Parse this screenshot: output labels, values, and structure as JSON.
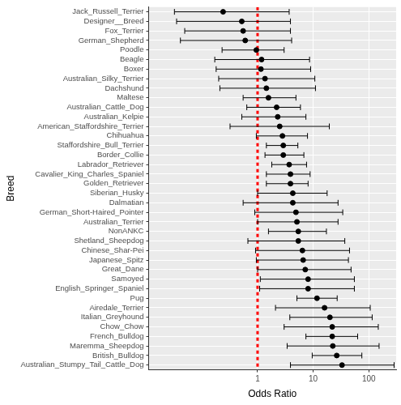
{
  "chart_data": {
    "type": "scatter",
    "x_label": "Odds Ratio",
    "y_label": "Breed",
    "categories": [
      "Jack_Russell_Terrier",
      "Designer__Breed",
      "Fox_Terrier",
      "German_Shepherd",
      "Poodle",
      "Beagle",
      "Boxer",
      "Australian_Silky_Terrier",
      "Dachshund",
      "Maltese",
      "Australian_Cattle_Dog",
      "Australian_Kelpie",
      "American_Staffordshire_Terrier",
      "Chihuahua",
      "Staffordshire_Bull_Terrier",
      "Border_Collie",
      "Labrador_Retriever",
      "Cavalier_King_Charles_Spaniel",
      "Golden_Retriever",
      "Siberian_Husky",
      "Dalmatian",
      "German_Short-Haired_Pointer",
      "Australian_Terrier",
      "NonANKC",
      "Shetland_Sheepdog",
      "Chinese_Shar-Pei",
      "Japanese_Spitz",
      "Great_Dane",
      "Samoyed",
      "English_Springer_Spaniel",
      "Pug",
      "Airedale_Terrier",
      "Italian_Greyhound",
      "Chow_Chow",
      "French_Bulldog",
      "Maremma_Sheepdog",
      "British_Bulldog",
      "Australian_Stumpy_Tail_Cattle_Dog"
    ],
    "values": [
      0.24,
      0.52,
      0.55,
      0.6,
      0.95,
      1.18,
      1.15,
      1.36,
      1.44,
      1.57,
      2.2,
      2.3,
      2.5,
      2.8,
      2.9,
      2.9,
      3.7,
      3.9,
      3.9,
      4.3,
      4.3,
      4.9,
      5.1,
      5.4,
      5.4,
      6.4,
      6.6,
      7.2,
      8.1,
      8.1,
      11.7,
      16,
      20,
      22,
      22,
      22.5,
      26.5,
      33
    ],
    "ci_lower": [
      0.032,
      0.035,
      0.049,
      0.041,
      0.23,
      0.17,
      0.18,
      0.2,
      0.21,
      0.55,
      0.64,
      0.52,
      0.32,
      0.95,
      1.44,
      1.36,
      1.8,
      1.44,
      1.44,
      1.0,
      0.55,
      0.89,
      1.0,
      1.57,
      0.67,
      0.92,
      0.95,
      1.0,
      1.12,
      1.09,
      5.1,
      2.1,
      3.8,
      3.0,
      7.4,
      3.4,
      9.6,
      3.9
    ],
    "ci_upper": [
      3.7,
      3.9,
      3.9,
      4.1,
      3.0,
      8.6,
      9.0,
      10.7,
      11,
      4.9,
      5.9,
      7.4,
      19.5,
      7.9,
      5.3,
      6.8,
      7.6,
      8.8,
      8.1,
      17.8,
      28,
      34,
      28,
      17.3,
      37,
      45,
      43,
      48,
      55,
      55,
      27,
      106,
      115,
      148,
      63,
      153,
      75,
      285
    ],
    "color": "#000000",
    "log": "x",
    "xlim": [
      0.011,
      310
    ],
    "xticks": [
      1,
      10,
      100
    ],
    "grid": true,
    "reference_line": {
      "value": 1,
      "color": "#ff0000",
      "line_style": "dashed"
    }
  }
}
